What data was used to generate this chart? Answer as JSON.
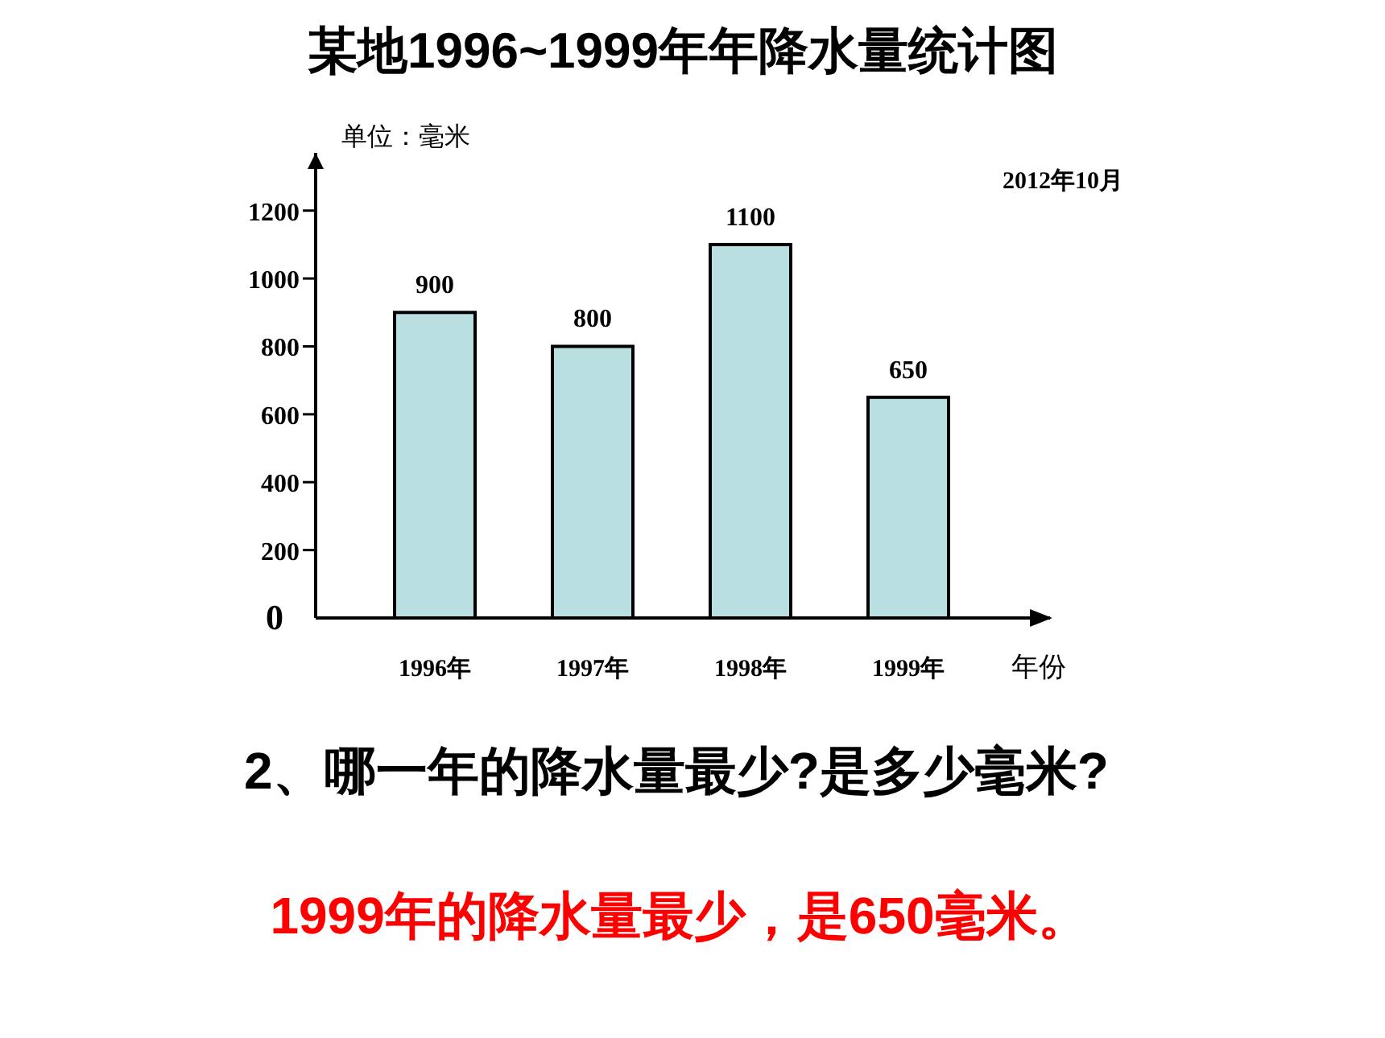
{
  "chart_data": {
    "type": "bar",
    "title": "某地1996~1999年年降水量统计图",
    "ylabel": "单位：毫米",
    "xlabel": "年份",
    "categories": [
      "1996年",
      "1997年",
      "1998年",
      "1999年"
    ],
    "values": [
      900,
      800,
      1100,
      650
    ],
    "color": "#b9dfe1",
    "data_labels": true,
    "ylim": [
      0,
      1370
    ],
    "yticks": [
      0,
      200,
      400,
      600,
      800,
      1000,
      1200
    ],
    "annotations": [
      "2012年10月",
      "2、哪一年的降水量最少?是多少毫米?",
      "1999年的降水量最少，是650毫米。"
    ]
  }
}
